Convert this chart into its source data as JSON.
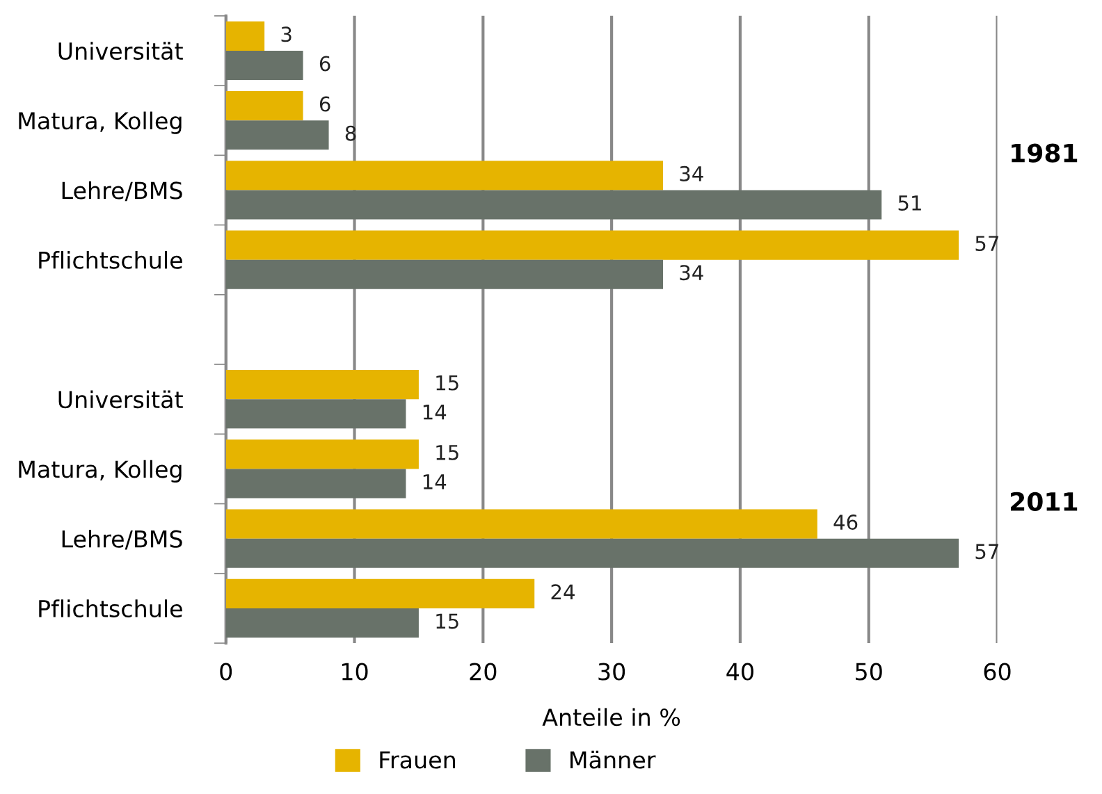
{
  "chart_data": {
    "type": "bar",
    "orientation": "horizontal",
    "xlabel": "Anteile in %",
    "categories": [
      "Universität",
      "Matura, Kolleg",
      "Lehre/BMS",
      "Pflichtschule",
      null,
      "Universität",
      "Matura, Kolleg",
      "Lehre/BMS",
      "Pflichtschule"
    ],
    "series": [
      {
        "name": "Frauen",
        "color": "#e6b400",
        "values": [
          3,
          6,
          34,
          57,
          null,
          15,
          15,
          46,
          24
        ]
      },
      {
        "name": "Männer",
        "color": "#687269",
        "values": [
          6,
          8,
          51,
          34,
          null,
          14,
          14,
          57,
          15
        ]
      }
    ],
    "xlim": [
      0,
      60
    ],
    "xticks": [
      0,
      10,
      20,
      30,
      40,
      50,
      60
    ],
    "grid": "x",
    "legend": "bottom",
    "data_labels": true,
    "annotations": [
      "1981",
      "2011"
    ]
  }
}
